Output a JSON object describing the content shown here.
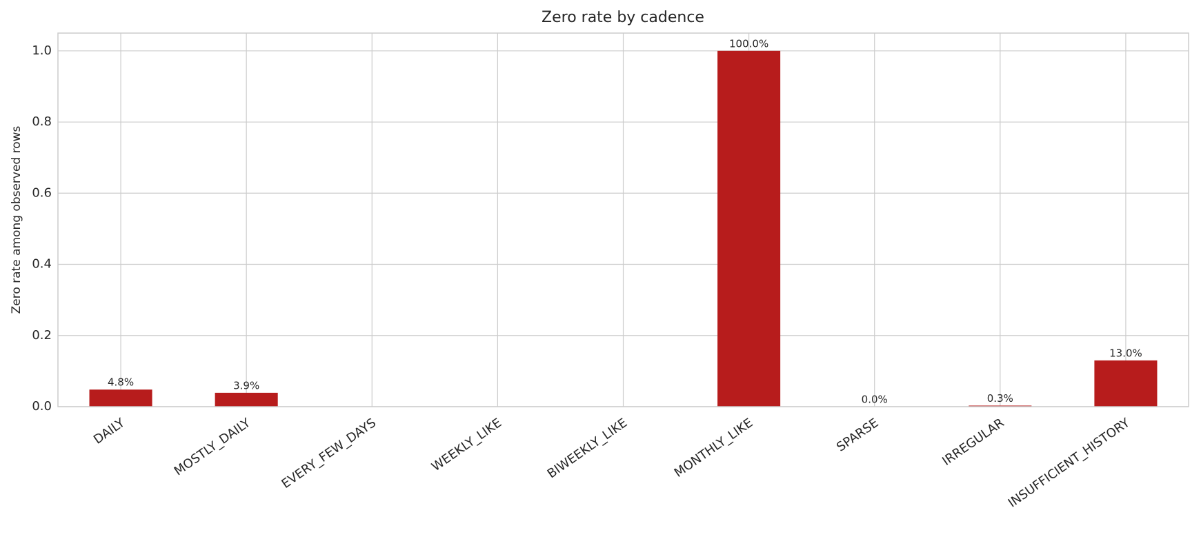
{
  "chart_data": {
    "type": "bar",
    "title": "Zero rate by cadence",
    "y_label": "Zero rate among observed rows",
    "categories": [
      "DAILY",
      "MOSTLY_DAILY",
      "EVERY_FEW_DAYS",
      "WEEKLY_LIKE",
      "BIWEEKLY_LIKE",
      "MONTHLY_LIKE",
      "SPARSE",
      "IRREGULAR",
      "INSUFFICIENT_HISTORY"
    ],
    "values": [
      0.048,
      0.039,
      null,
      null,
      null,
      1.0,
      0.0,
      0.003,
      0.13
    ],
    "value_labels": [
      "4.8%",
      "3.9%",
      null,
      null,
      null,
      "100.0%",
      "0.0%",
      "0.3%",
      "13.0%"
    ],
    "color": "#b71c1c",
    "ylim": [
      0,
      1.05
    ],
    "yticks": [
      {
        "value": 0,
        "label": "0.0"
      },
      {
        "value": 0.2,
        "label": "0.2"
      },
      {
        "value": 0.4,
        "label": "0.4"
      },
      {
        "value": 0.6,
        "label": "0.6"
      },
      {
        "value": 0.8,
        "label": "0.8"
      },
      {
        "value": 1,
        "label": "1.0"
      }
    ],
    "grid": true
  }
}
